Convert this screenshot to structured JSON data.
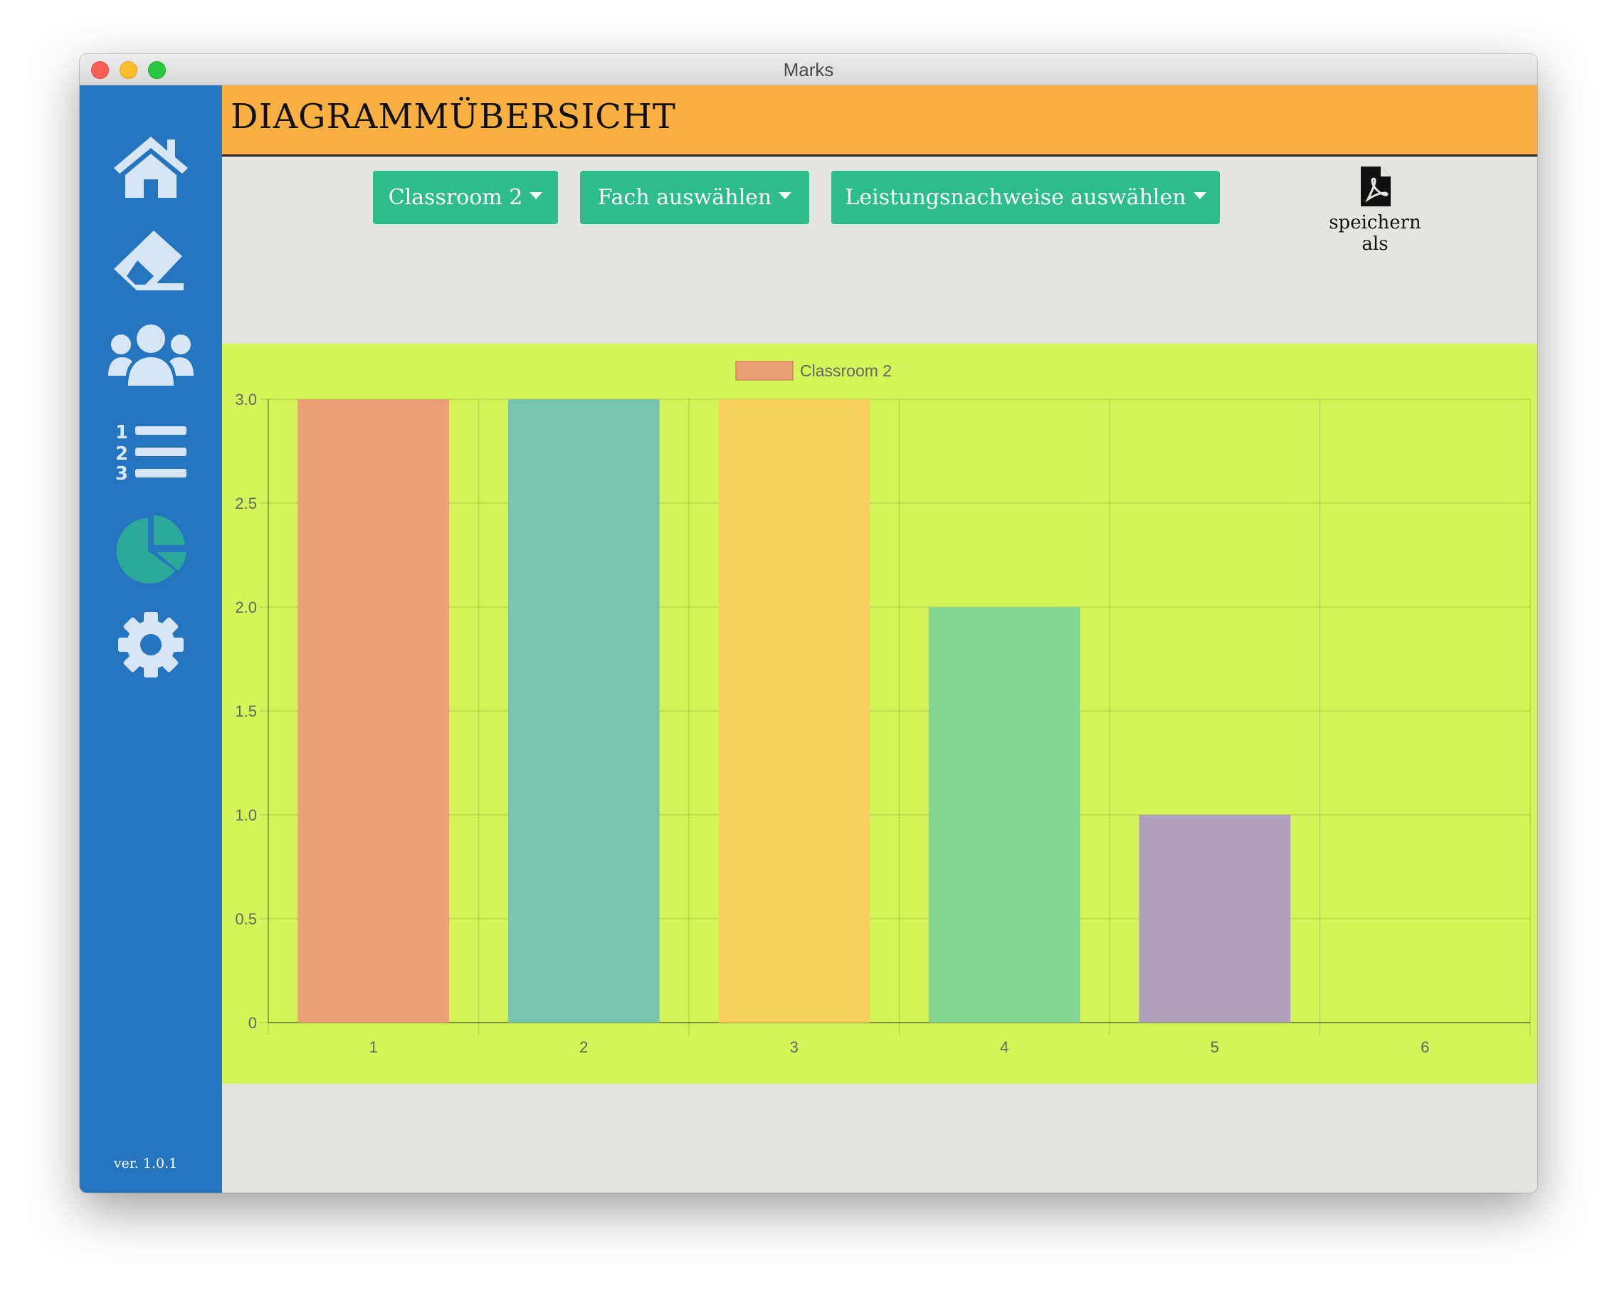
{
  "window": {
    "title": "Marks"
  },
  "sidebar": {
    "items": [
      {
        "icon": "home-icon"
      },
      {
        "icon": "eraser-icon"
      },
      {
        "icon": "users-icon"
      },
      {
        "icon": "numbered-list-icon"
      },
      {
        "icon": "pie-chart-icon",
        "active": true,
        "active_color": "#2ba89a"
      },
      {
        "icon": "gear-icon"
      }
    ],
    "version": "ver. 1.0.1"
  },
  "header": {
    "title": "DIAGRAMMÜBERSICHT",
    "color": "#fcb041"
  },
  "toolbar": {
    "classroom_label": "Classroom 2",
    "subject_label": "Fach auswählen",
    "assessments_label": "Leistungsnachweise auswählen",
    "save_label": "speichern als",
    "button_color": "#2dbc8b"
  },
  "chart_data": {
    "type": "bar",
    "categories": [
      "1",
      "2",
      "3",
      "4",
      "5",
      "6"
    ],
    "series": [
      {
        "name": "Classroom 2",
        "values": [
          3,
          3,
          3,
          2,
          1,
          0
        ]
      }
    ],
    "bar_colors": [
      "#eb9f74",
      "#78c4ad",
      "#f8d05e",
      "#84d591",
      "#afa0bc",
      "#b7a8e0"
    ],
    "ylim": [
      0,
      3
    ],
    "yticks": [
      "0",
      "0.5",
      "1.0",
      "1.5",
      "2.0",
      "2.5",
      "3.0"
    ],
    "legend_position": "top-center",
    "grid": true,
    "background": "#d4f557"
  }
}
